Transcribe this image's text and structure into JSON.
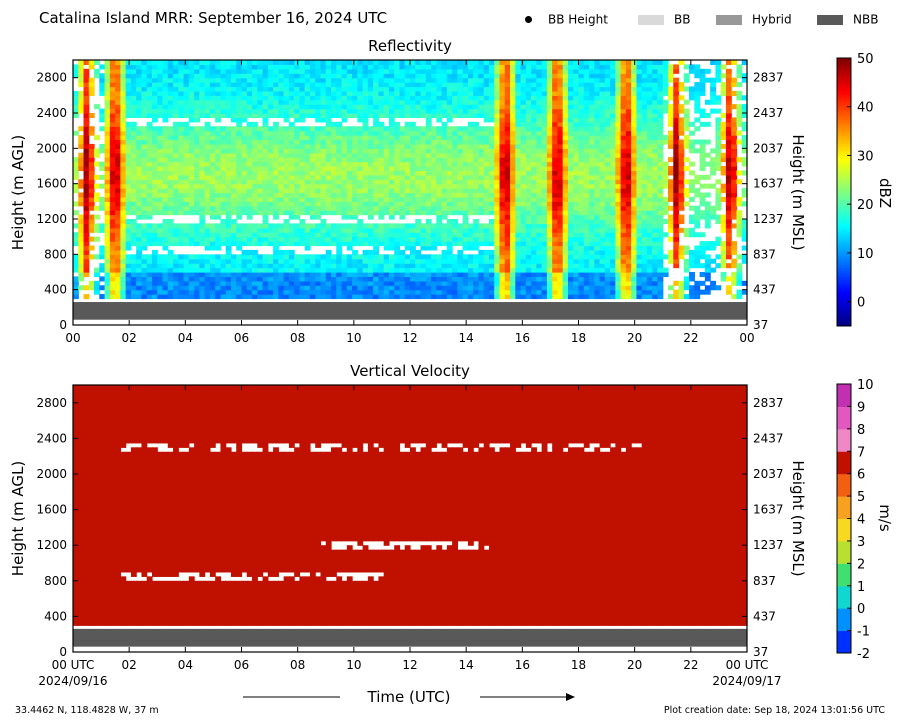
{
  "header": {
    "title": "Catalina Island MRR:  September 16, 2024 UTC",
    "legend": [
      {
        "label": "BB Height",
        "marker": "dot",
        "color": "#000000"
      },
      {
        "label": "BB",
        "marker": "swatch",
        "color": "#d9d9d9"
      },
      {
        "label": "Hybrid",
        "marker": "swatch",
        "color": "#999999"
      },
      {
        "label": "NBB",
        "marker": "swatch",
        "color": "#595959"
      }
    ]
  },
  "chart_data": [
    {
      "type": "heatmap",
      "title": "Reflectivity",
      "xlabel": "",
      "ylabel": "Height (m AGL)",
      "ylabel_right": "Height (m MSL)",
      "x_ticks": [
        "00",
        "02",
        "04",
        "06",
        "08",
        "10",
        "12",
        "14",
        "16",
        "18",
        "20",
        "22",
        "00"
      ],
      "xlim_hours": [
        0,
        24
      ],
      "y_ticks": [
        0,
        400,
        800,
        1200,
        1600,
        2000,
        2400,
        2800
      ],
      "y_ticks_right": [
        37,
        437,
        837,
        1237,
        1637,
        2037,
        2437,
        2837
      ],
      "ylim": [
        0,
        3000
      ],
      "colorbar": {
        "label": "dBZ",
        "range": [
          -5,
          50
        ],
        "ticks": [
          0,
          10,
          20,
          30,
          40,
          50
        ],
        "colormap": "jet"
      },
      "features": {
        "typical_dbz_range": [
          12,
          28
        ],
        "data_bottom_m": 300,
        "intense_columns_hours": [
          0.5,
          1.5,
          15.4,
          17.25,
          19.7,
          21.5,
          23.4
        ],
        "missing_bands_m": [
          [
            780,
            900
          ],
          [
            1130,
            1260
          ],
          [
            2230,
            2330
          ]
        ]
      }
    },
    {
      "type": "heatmap",
      "title": "Vertical Velocity",
      "xlabel": "Time (UTC)",
      "ylabel": "Height (m AGL)",
      "ylabel_right": "Height (m MSL)",
      "x_ticks": [
        "00 UTC",
        "02",
        "04",
        "06",
        "08",
        "10",
        "12",
        "14",
        "16",
        "18",
        "20",
        "22",
        "00 UTC"
      ],
      "x_dates": [
        "2024/09/16",
        "2024/09/17"
      ],
      "xlim_hours": [
        0,
        24
      ],
      "y_ticks": [
        0,
        400,
        800,
        1200,
        1600,
        2000,
        2400,
        2800
      ],
      "y_ticks_right": [
        37,
        437,
        837,
        1237,
        1637,
        2037,
        2437,
        2837
      ],
      "ylim": [
        0,
        3000
      ],
      "colorbar": {
        "label": "m/s",
        "range": [
          -2,
          10
        ],
        "ticks": [
          -2,
          -1,
          0,
          1,
          2,
          3,
          4,
          5,
          6,
          7,
          8,
          9,
          10
        ]
      },
      "features": {
        "dominant_velocity_ms": 6,
        "data_bottom_m": 300
      }
    }
  ],
  "footer": {
    "location": "33.4462 N, 118.4828 W, 37 m",
    "creation": "Plot creation date: Sep 18, 2024 13:01:56 UTC"
  }
}
